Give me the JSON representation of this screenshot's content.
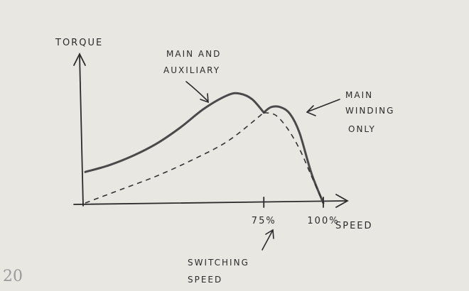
{
  "chart_data": {
    "type": "line",
    "ylabel": "TORQUE",
    "xlabel": "SPEED",
    "tick_labels": [
      "75%",
      "100%"
    ],
    "x_ticks": [
      75,
      100
    ],
    "xlim": [
      0,
      110
    ],
    "ylim": [
      0,
      100
    ],
    "series": [
      {
        "name": "MAIN AND AUXILIARY",
        "style": "solid",
        "x": [
          0,
          10,
          20,
          30,
          40,
          50,
          60,
          65,
          70,
          75
        ],
        "y": [
          23,
          28,
          35,
          44,
          56,
          70,
          80,
          81,
          77,
          67
        ]
      },
      {
        "name": "MAIN WINDING ONLY",
        "style": "solid",
        "x": [
          75,
          78,
          82,
          86,
          90,
          95,
          100
        ],
        "y": [
          67,
          71,
          71,
          66,
          52,
          22,
          0
        ]
      },
      {
        "style": "dashed",
        "x": [
          0,
          15,
          30,
          45,
          60,
          75
        ],
        "y": [
          0,
          10,
          20,
          32,
          46,
          67
        ]
      },
      {
        "style": "dashed",
        "x": [
          75,
          80,
          85,
          90,
          95,
          100
        ],
        "y": [
          67,
          65,
          55,
          40,
          20,
          0
        ]
      }
    ],
    "annotations": {
      "main_and_aux_line1": "MAIN AND",
      "main_and_aux_line2": "AUXILIARY",
      "main_only_line1": "MAIN",
      "main_only_line2": "WINDING",
      "main_only_line3": "ONLY",
      "switching_line1": "SWITCHING",
      "switching_line2": "SPEED"
    }
  },
  "page_note": "20"
}
